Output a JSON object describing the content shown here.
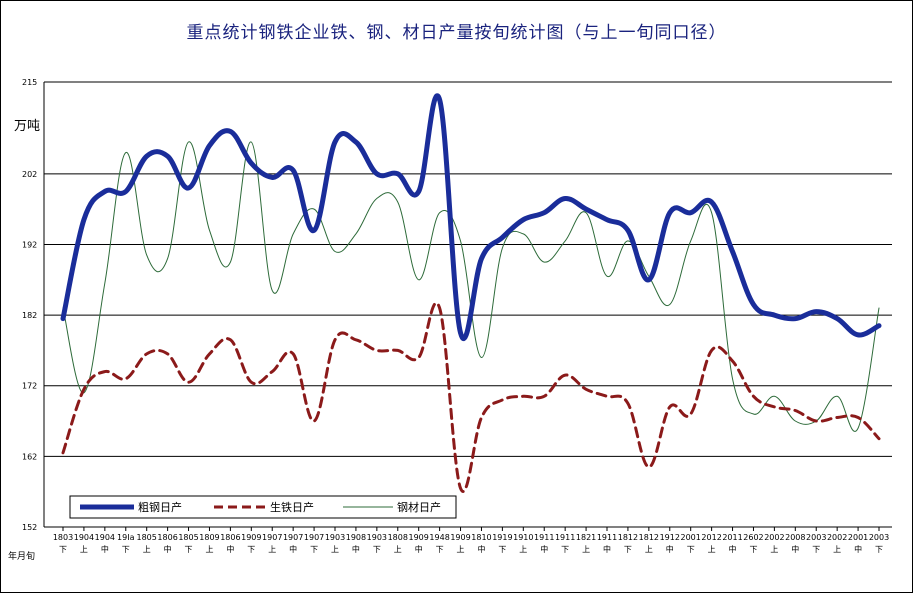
{
  "chart_data": {
    "type": "line",
    "title": "重点统计钢铁企业铁、钢、材日产量按旬统计图（与上一旬同口径）",
    "ylabel": "万吨",
    "xlabel": "年月旬",
    "ylim": [
      152,
      215
    ],
    "yticks": [
      "152",
      "162",
      "172",
      "182",
      "192",
      "202",
      "215"
    ],
    "categories": [
      "1803",
      "1904",
      "1904",
      "19Ia",
      "1805",
      "1806",
      "1805",
      "1809",
      "1806",
      "1909",
      "1907",
      "1907",
      "1907",
      "1903",
      "1908",
      "1903",
      "1808",
      "1909",
      "1948",
      "1909",
      "1810",
      "1919",
      "1910",
      "1911",
      "1911",
      "1821",
      "1911",
      "1812",
      "1812",
      "1912",
      "2001",
      "2012",
      "2011",
      "2602",
      "2002",
      "2008",
      "2003",
      "2002",
      "2001",
      "2003"
    ],
    "subcats": [
      "下",
      "上",
      "中",
      "下",
      "上",
      "中",
      "下",
      "上",
      "中",
      "下",
      "上",
      "中",
      "下",
      "上",
      "中",
      "下",
      "上",
      "中",
      "下",
      "上",
      "中",
      "下",
      "上",
      "中",
      "下",
      "上",
      "中",
      "下",
      "上",
      "中",
      "下",
      "上",
      "中",
      "下",
      "上",
      "中",
      "下",
      "上",
      "中",
      "下"
    ],
    "series": [
      {
        "name": "粗钢日产",
        "color": "#1a2d9a",
        "style": "solid-thick",
        "values": [
          181.5,
          195.5,
          199.5,
          199.5,
          204.5,
          204.5,
          200,
          206,
          208,
          203.5,
          201.5,
          202.5,
          194,
          206.5,
          206.5,
          202,
          202,
          199.5,
          212.5,
          179.5,
          190,
          193,
          195.5,
          196.5,
          198.5,
          197,
          195.5,
          194,
          187,
          196.5,
          196.5,
          198,
          191,
          183.5,
          182,
          181.5,
          182.5,
          181.5,
          179.2,
          180.5
        ]
      },
      {
        "name": "生铁日产",
        "color": "#8b1a1a",
        "style": "dashed",
        "values": [
          162.5,
          171.5,
          174,
          173,
          176.5,
          176.5,
          172.5,
          176.5,
          178.5,
          172.5,
          174,
          176.5,
          167,
          178.5,
          178.5,
          177,
          177,
          176,
          183,
          157.5,
          167.5,
          170,
          170.5,
          170.5,
          173.5,
          171.5,
          170.5,
          169.5,
          160.5,
          169,
          168,
          177,
          175.5,
          170.5,
          169,
          168.5,
          167,
          167.5,
          167.5,
          164.5
        ]
      },
      {
        "name": "钢材日产",
        "color": "#2e6b3a",
        "style": "thin",
        "values": [
          183,
          171,
          186.5,
          205,
          190.5,
          190,
          206.5,
          194,
          189.5,
          206.5,
          185.5,
          193.5,
          197,
          191,
          193.5,
          198.5,
          198,
          187,
          196.5,
          192.5,
          176,
          191.5,
          193.5,
          189.5,
          192.5,
          196.5,
          187.5,
          192.5,
          187.5,
          183.5,
          192.5,
          196.5,
          173,
          168,
          170.5,
          167,
          167,
          170.5,
          166,
          183
        ]
      }
    ]
  },
  "legend": {
    "items": [
      {
        "label": "粗钢日产"
      },
      {
        "label": "生铁日产"
      },
      {
        "label": "钢材日产"
      }
    ]
  }
}
